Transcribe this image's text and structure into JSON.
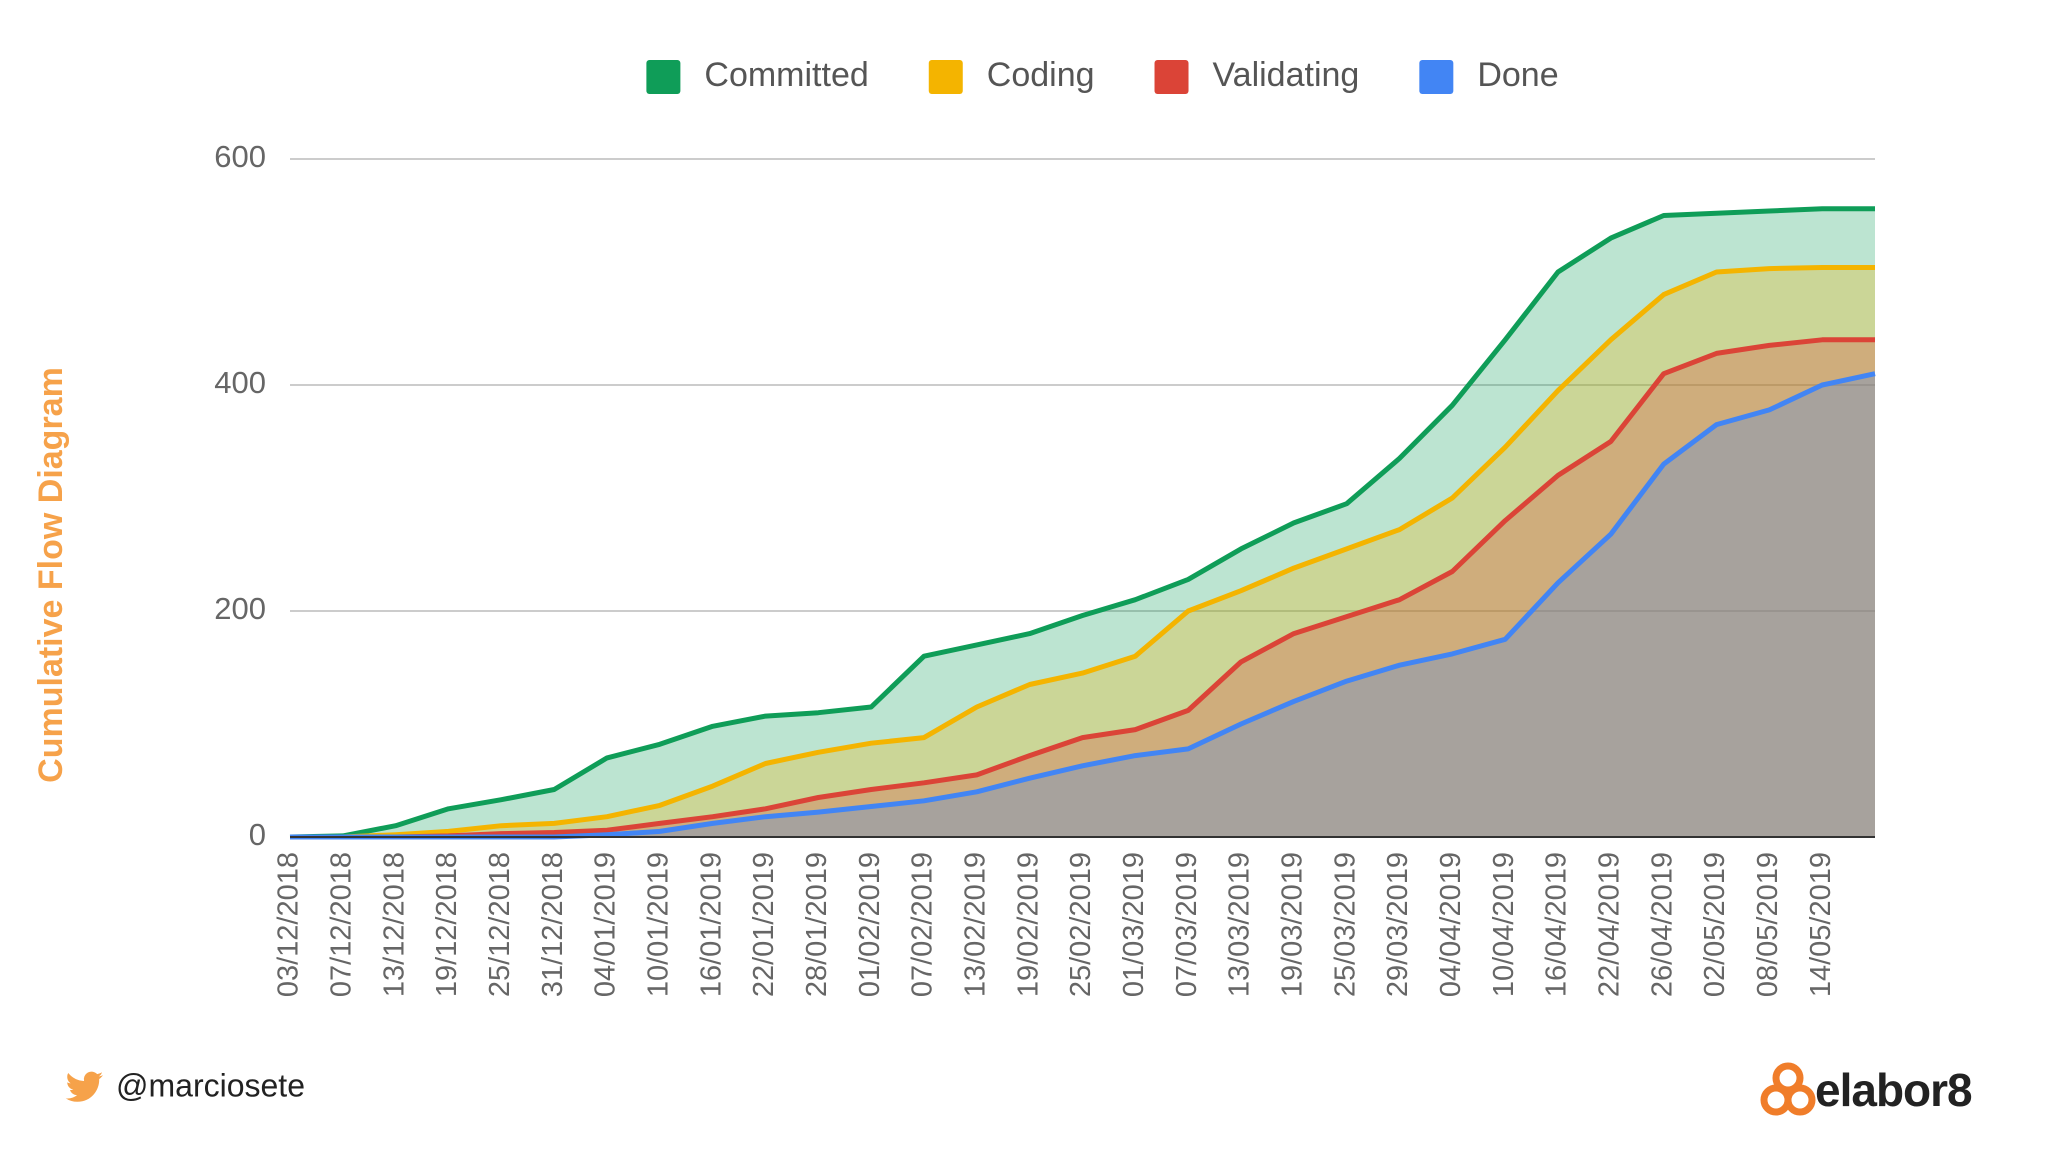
{
  "chart_data": {
    "type": "area",
    "y_label": "Cumulative Flow Diagram",
    "categories": [
      "03/12/2018",
      "07/12/2018",
      "13/12/2018",
      "19/12/2018",
      "25/12/2018",
      "31/12/2018",
      "04/01/2019",
      "10/01/2019",
      "16/01/2019",
      "22/01/2019",
      "28/01/2019",
      "01/02/2019",
      "07/02/2019",
      "13/02/2019",
      "19/02/2019",
      "25/02/2019",
      "01/03/2019",
      "07/03/2019",
      "13/03/2019",
      "19/03/2019",
      "25/03/2019",
      "29/03/2019",
      "04/04/2019",
      "10/04/2019",
      "16/04/2019",
      "22/04/2019",
      "26/04/2019",
      "02/05/2019",
      "08/05/2019",
      "14/05/2019",
      null
    ],
    "series": [
      {
        "name": "Committed",
        "color": "#0f9d58",
        "values": [
          0,
          1,
          10,
          25,
          33,
          42,
          70,
          82,
          98,
          107,
          110,
          115,
          160,
          170,
          180,
          196,
          210,
          228,
          255,
          278,
          295,
          335,
          382,
          440,
          500,
          530,
          550,
          552,
          554,
          556,
          556
        ]
      },
      {
        "name": "Coding",
        "color": "#f4b400",
        "values": [
          0,
          0,
          2,
          5,
          10,
          12,
          18,
          28,
          45,
          65,
          75,
          83,
          88,
          115,
          135,
          145,
          160,
          200,
          218,
          238,
          255,
          272,
          300,
          345,
          395,
          440,
          480,
          500,
          503,
          504,
          504
        ]
      },
      {
        "name": "Validating",
        "color": "#db4437",
        "values": [
          0,
          0,
          0,
          1,
          3,
          4,
          6,
          12,
          18,
          25,
          35,
          42,
          48,
          55,
          72,
          88,
          95,
          112,
          155,
          180,
          195,
          210,
          235,
          280,
          320,
          350,
          410,
          428,
          435,
          440,
          440
        ]
      },
      {
        "name": "Done",
        "color": "#4285f4",
        "values": [
          0,
          0,
          0,
          0,
          0,
          0,
          2,
          5,
          12,
          18,
          22,
          27,
          32,
          40,
          52,
          63,
          72,
          78,
          100,
          120,
          138,
          152,
          162,
          175,
          225,
          268,
          330,
          365,
          378,
          400,
          410
        ]
      }
    ],
    "ylim": [
      0,
      600
    ],
    "yticks": [
      0,
      200,
      400,
      600
    ],
    "grid": true,
    "legend": "top"
  },
  "footer": {
    "handle": "@marciosete",
    "logo": "elabor8"
  }
}
